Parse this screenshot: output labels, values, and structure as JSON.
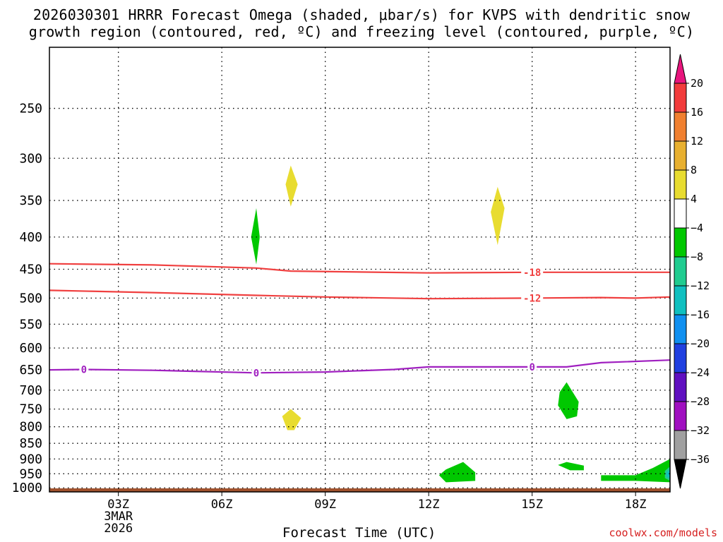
{
  "title_line1": "2026030301 HRRR Forecast Omega (shaded, μbar/s) for KVPS with dendritic snow",
  "title_line2": "growth region (contoured, red, ºC) and freezing level (contoured, purple, ºC)",
  "credit": "coolwx.com/models",
  "chart_data": {
    "type": "area",
    "title": "2026030301 HRRR Forecast Omega (shaded, μbar/s) for KVPS with dendritic snow growth region (contoured, red, ºC) and freezing level (contoured, purple, ºC)",
    "xlabel": "Forecast Time (UTC)",
    "x_ticks": [
      {
        "hour": 3,
        "label": "03Z"
      },
      {
        "hour": 6,
        "label": "06Z"
      },
      {
        "hour": 9,
        "label": "09Z"
      },
      {
        "hour": 12,
        "label": "12Z"
      },
      {
        "hour": 15,
        "label": "15Z"
      },
      {
        "hour": 18,
        "label": "18Z"
      }
    ],
    "date_label": [
      "3MAR",
      "2026"
    ],
    "xlim": [
      1,
      19
    ],
    "y_ticks": [
      250,
      300,
      350,
      400,
      450,
      500,
      550,
      600,
      650,
      700,
      750,
      800,
      850,
      900,
      950,
      1000
    ],
    "ylim": [
      200,
      1015
    ],
    "y_scale": "log",
    "y_inverted": true,
    "grid": true,
    "colorbar": {
      "labels": [
        "20",
        "16",
        "12",
        "8",
        "4",
        "−4",
        "−8",
        "−12",
        "−16",
        "−20",
        "−24",
        "−28",
        "−32",
        "−36"
      ],
      "colors": [
        "#e8157d",
        "#f23c3c",
        "#f08030",
        "#e8b030",
        "#e8dc30",
        "#ffffff",
        "#00c800",
        "#20cc90",
        "#10c0c0",
        "#1090f0",
        "#2040e0",
        "#6010c0",
        "#a010c0",
        "#a0a0a0",
        "#000000"
      ]
    },
    "contours": [
      {
        "label": "-18",
        "color": "#f04040",
        "points": [
          [
            1,
            441
          ],
          [
            4,
            443
          ],
          [
            7,
            448
          ],
          [
            8,
            453
          ],
          [
            12,
            456
          ],
          [
            15,
            455
          ],
          [
            19,
            455
          ]
        ],
        "label_positions": [
          15
        ]
      },
      {
        "label": "-12",
        "color": "#f04040",
        "points": [
          [
            1,
            486
          ],
          [
            4,
            490
          ],
          [
            7,
            495
          ],
          [
            9,
            498
          ],
          [
            12,
            501
          ],
          [
            15,
            500
          ],
          [
            17,
            499
          ],
          [
            18,
            500
          ],
          [
            19,
            498
          ]
        ],
        "label_positions": [
          15
        ]
      },
      {
        "label": "0",
        "color": "#a020c0",
        "points": [
          [
            1,
            650
          ],
          [
            2,
            649
          ],
          [
            4,
            651
          ],
          [
            7,
            657
          ],
          [
            9,
            655
          ],
          [
            11,
            649
          ],
          [
            12,
            643
          ],
          [
            15,
            643
          ],
          [
            16,
            643
          ],
          [
            17,
            633
          ],
          [
            19,
            627
          ]
        ],
        "label_positions": [
          2,
          7,
          15
        ]
      }
    ],
    "shaded_regions": [
      {
        "value": "-4 to -8",
        "color": "#00c800",
        "points": [
          [
            7,
            360
          ],
          [
            7.1,
            400
          ],
          [
            7,
            442
          ],
          [
            6.85,
            400
          ]
        ]
      },
      {
        "value": "4 to 8",
        "color": "#e8dc30",
        "points": [
          [
            8,
            308
          ],
          [
            8.2,
            330
          ],
          [
            8,
            358
          ],
          [
            7.85,
            330
          ]
        ]
      },
      {
        "value": "4 to 8",
        "color": "#e8dc30",
        "points": [
          [
            14,
            333
          ],
          [
            14.2,
            360
          ],
          [
            14,
            412
          ],
          [
            13.8,
            365
          ]
        ]
      },
      {
        "value": "4 to 8",
        "color": "#e8dc30",
        "points": [
          [
            8,
            750
          ],
          [
            8.3,
            775
          ],
          [
            8.1,
            810
          ],
          [
            7.9,
            810
          ],
          [
            7.75,
            770
          ]
        ]
      },
      {
        "value": "-4 to -8",
        "color": "#00c800",
        "points": [
          [
            16,
            680
          ],
          [
            16.35,
            730
          ],
          [
            16.3,
            770
          ],
          [
            16,
            778
          ],
          [
            15.75,
            740
          ],
          [
            15.8,
            705
          ]
        ]
      },
      {
        "value": "-4 to -8",
        "color": "#00c800",
        "points": [
          [
            16,
            910
          ],
          [
            16.5,
            922
          ],
          [
            16.5,
            938
          ],
          [
            16.1,
            938
          ],
          [
            15.75,
            920
          ]
        ]
      },
      {
        "value": "-4 to -8",
        "color": "#00c800",
        "points": [
          [
            13,
            910
          ],
          [
            13.35,
            945
          ],
          [
            13.35,
            975
          ],
          [
            12.5,
            980
          ],
          [
            12.3,
            955
          ],
          [
            12.5,
            935
          ]
        ]
      },
      {
        "value": "-4 to -8",
        "color": "#00c800",
        "points": [
          [
            17,
            955
          ],
          [
            18,
            955
          ],
          [
            18.5,
            930
          ],
          [
            19,
            900
          ],
          [
            19,
            980
          ],
          [
            18,
            975
          ],
          [
            17,
            975
          ]
        ]
      },
      {
        "value": "-8 to -12",
        "color": "#20cc90",
        "points": [
          [
            18.85,
            940
          ],
          [
            19,
            925
          ],
          [
            19,
            975
          ],
          [
            18.85,
            965
          ]
        ]
      },
      {
        "value": "-12 to -16",
        "color": "#10c0c0",
        "points": [
          [
            18.9,
            945
          ],
          [
            19,
            935
          ],
          [
            19,
            965
          ],
          [
            18.9,
            960
          ]
        ]
      }
    ],
    "ground": {
      "color": "#a0522d",
      "from_pressure": 1002
    }
  }
}
